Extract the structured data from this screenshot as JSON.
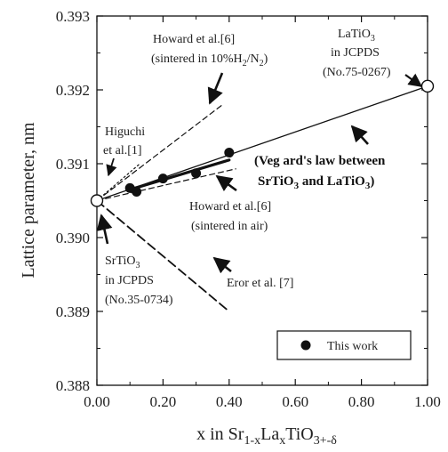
{
  "chart_data": {
    "type": "scatter",
    "xlabel": "x in Sr1-xLaxTiO3+-δ",
    "ylabel": "Lattice parameter, nm",
    "xlim": [
      0,
      1.0
    ],
    "ylim": [
      0.388,
      0.393
    ],
    "x_ticks": [
      "0.00",
      "0.20",
      "0.40",
      "0.60",
      "0.80",
      "1.00"
    ],
    "y_ticks": [
      "0.388",
      "0.389",
      "0.390",
      "0.391",
      "0.392",
      "0.393"
    ],
    "grid": false,
    "legend_position": "bottom-right",
    "series": [
      {
        "name": "This work",
        "marker": "filled-circle",
        "x": [
          0.1,
          0.12,
          0.2,
          0.3,
          0.4
        ],
        "y": [
          0.39067,
          0.39062,
          0.3908,
          0.39087,
          0.39115
        ]
      }
    ],
    "reference_points": [
      {
        "x": 0.0,
        "y": 0.3905,
        "marker": "open-circle"
      },
      {
        "x": 1.0,
        "y": 0.39205,
        "marker": "open-circle"
      }
    ],
    "lines": [
      {
        "style": "solid",
        "x": [
          0.0,
          1.0
        ],
        "y": [
          0.3905,
          0.39205
        ]
      },
      {
        "style": "dash-thin",
        "x": [
          0.0,
          0.38
        ],
        "y": [
          0.3905,
          0.3918
        ]
      },
      {
        "style": "dot",
        "x": [
          0.0,
          0.13
        ],
        "y": [
          0.3905,
          0.391
        ]
      },
      {
        "style": "dash-thin",
        "x": [
          0.0,
          0.42
        ],
        "y": [
          0.3905,
          0.39093
        ]
      },
      {
        "style": "dash-thick",
        "x": [
          0.0,
          0.4
        ],
        "y": [
          0.3905,
          0.389
        ]
      },
      {
        "style": "solid-thick",
        "x": [
          0.1,
          0.4
        ],
        "y": [
          0.39065,
          0.39105
        ]
      }
    ],
    "annotations": [
      {
        "lines": [
          "Howard et al.[6]",
          "(sintered in 10%H₂/N₂)"
        ],
        "style": "normal"
      },
      {
        "lines": [
          "LaTiO₃",
          "in JCPDS",
          "(No.75-0267)"
        ],
        "style": "normal"
      },
      {
        "lines": [
          "Higuchi",
          "et al.[1]"
        ],
        "style": "normal"
      },
      {
        "lines": [
          "(Vegard's law between",
          "SrTiO₃ and LaTiO₃)"
        ],
        "style": "bold"
      },
      {
        "lines": [
          "Howard et al.[6]",
          "(sintered in air)"
        ],
        "style": "normal"
      },
      {
        "lines": [
          "SrTiO₃",
          "in JCPDS",
          "(No.35-0734)"
        ],
        "style": "normal"
      },
      {
        "lines": [
          "Eror et al. [7]"
        ],
        "style": "normal"
      }
    ]
  },
  "accent_color": "#111111"
}
